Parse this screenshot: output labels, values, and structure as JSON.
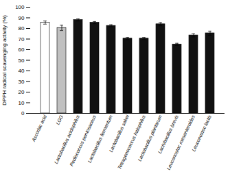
{
  "chart_data": {
    "type": "bar",
    "categories": [
      "Ascorbic acid",
      "LGG",
      "Lactobacillus acidophilus",
      "Pediococcus pentosaceus",
      "Lactobacillus fermentum",
      "Lactobacillus sakei",
      "Tetragenococcus halophilus",
      "Lactobacillus plantarum",
      "Lactobacillus brevis",
      "Leuconostoc mesenteroides",
      "Leuconostoc lactis"
    ],
    "values": [
      85.5,
      80.5,
      88.0,
      85.5,
      82.5,
      70.5,
      70.5,
      84.0,
      65.0,
      73.5,
      75.5
    ],
    "errors": [
      1.5,
      2.5,
      1.0,
      1.0,
      1.0,
      1.0,
      1.0,
      1.5,
      1.0,
      1.5,
      2.0
    ],
    "colors": [
      "white",
      "#c0c0c0",
      "#111111",
      "#111111",
      "#111111",
      "#111111",
      "#111111",
      "#111111",
      "#111111",
      "#111111",
      "#111111"
    ],
    "ylabel": "DPPH radical scavenging activity (%)",
    "ylim": [
      0,
      100
    ],
    "yticks": [
      0,
      10,
      20,
      30,
      40,
      50,
      60,
      70,
      80,
      90,
      100
    ],
    "grid": false
  }
}
